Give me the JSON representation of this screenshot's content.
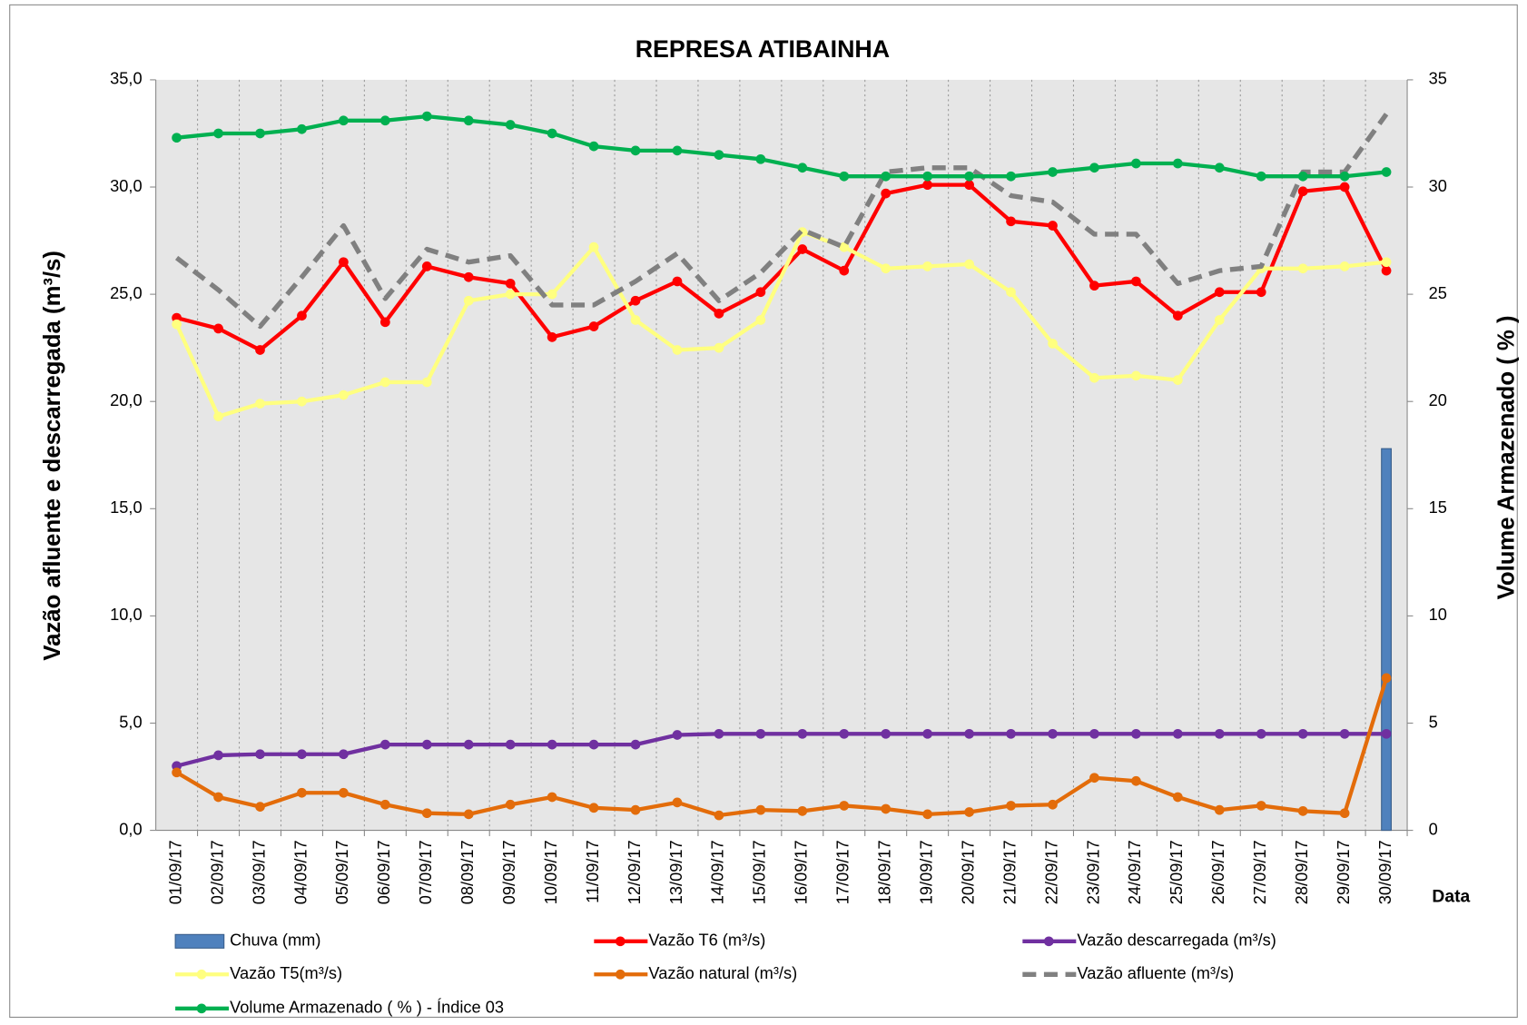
{
  "chart_data": {
    "type": "line",
    "title": "REPRESA ATIBAINHA",
    "y_label": "Vazão afluente e descarregada (m³/s)",
    "y2_label": "Volume Armazenado ( % )",
    "x_label": "Data",
    "categories": [
      "01/09/17",
      "02/09/17",
      "03/09/17",
      "04/09/17",
      "05/09/17",
      "06/09/17",
      "07/09/17",
      "08/09/17",
      "09/09/17",
      "10/09/17",
      "11/09/17",
      "12/09/17",
      "13/09/17",
      "14/09/17",
      "15/09/17",
      "16/09/17",
      "17/09/17",
      "18/09/17",
      "19/09/17",
      "20/09/17",
      "21/09/17",
      "22/09/17",
      "23/09/17",
      "24/09/17",
      "25/09/17",
      "26/09/17",
      "27/09/17",
      "28/09/17",
      "29/09/17",
      "30/09/17"
    ],
    "ylim": [
      0,
      35
    ],
    "yticks": [
      {
        "value": 0,
        "label": "0,0"
      },
      {
        "value": 5,
        "label": "5,0"
      },
      {
        "value": 10,
        "label": "10,0"
      },
      {
        "value": 15,
        "label": "15,0"
      },
      {
        "value": 20,
        "label": "20,0"
      },
      {
        "value": 25,
        "label": "25,0"
      },
      {
        "value": 30,
        "label": "30,0"
      },
      {
        "value": 35,
        "label": "35,0"
      }
    ],
    "y2lim": [
      0,
      35
    ],
    "y2ticks": [
      0,
      5,
      10,
      15,
      20,
      25,
      30,
      35
    ],
    "series": [
      {
        "name": "Chuva (mm)",
        "type": "bar",
        "color": "#4f81bd",
        "values": [
          0,
          0,
          0,
          0,
          0,
          0,
          0,
          0,
          0,
          0,
          0,
          0,
          0,
          0,
          0,
          0,
          0,
          0,
          0,
          0,
          0,
          0,
          0,
          0,
          0,
          0,
          0,
          0,
          0,
          17.8
        ]
      },
      {
        "name": "Vazão T6 (m³/s)",
        "type": "line",
        "color": "#ff0000",
        "marker": true,
        "values": [
          23.9,
          23.4,
          22.4,
          24.0,
          26.5,
          23.7,
          26.3,
          25.8,
          25.5,
          23.0,
          23.5,
          24.7,
          25.6,
          24.1,
          25.1,
          27.1,
          26.1,
          29.7,
          30.1,
          30.1,
          28.4,
          28.2,
          25.4,
          25.6,
          24.0,
          25.1,
          25.1,
          29.8,
          30.0,
          26.1
        ]
      },
      {
        "name": "Vazão descarregada (m³/s)",
        "type": "line",
        "color": "#7030a0",
        "marker": true,
        "values": [
          3.0,
          3.5,
          3.55,
          3.55,
          3.55,
          4.0,
          4.0,
          4.0,
          4.0,
          4.0,
          4.0,
          4.0,
          4.45,
          4.5,
          4.5,
          4.5,
          4.5,
          4.5,
          4.5,
          4.5,
          4.5,
          4.5,
          4.5,
          4.5,
          4.5,
          4.5,
          4.5,
          4.5,
          4.5,
          4.5
        ]
      },
      {
        "name": "Vazão T5(m³/s)",
        "type": "line",
        "color": "#ffff80",
        "marker": true,
        "values": [
          23.6,
          19.3,
          19.9,
          20.0,
          20.3,
          20.9,
          20.9,
          24.7,
          25.0,
          25.0,
          27.2,
          23.8,
          22.4,
          22.5,
          23.8,
          27.9,
          27.2,
          26.2,
          26.3,
          26.4,
          25.1,
          22.7,
          21.1,
          21.2,
          21.0,
          23.8,
          26.2,
          26.2,
          26.3,
          26.5
        ]
      },
      {
        "name": "Vazão natural (m³/s)",
        "type": "line",
        "color": "#e36c0a",
        "marker": true,
        "values": [
          2.7,
          1.55,
          1.1,
          1.75,
          1.75,
          1.2,
          0.8,
          0.75,
          1.2,
          1.55,
          1.05,
          0.95,
          1.3,
          0.7,
          0.95,
          0.9,
          1.15,
          1.0,
          0.75,
          0.85,
          1.15,
          1.2,
          2.45,
          2.3,
          1.55,
          0.95,
          1.15,
          0.9,
          0.8,
          7.1
        ]
      },
      {
        "name": "Vazão afluente (m³/s)",
        "type": "line",
        "color": "#808080",
        "dash": true,
        "marker": false,
        "values": [
          26.7,
          25.2,
          23.5,
          25.8,
          28.2,
          24.8,
          27.1,
          26.5,
          26.8,
          24.5,
          24.5,
          25.6,
          26.9,
          24.7,
          26.0,
          28.0,
          27.2,
          30.7,
          30.9,
          30.9,
          29.6,
          29.3,
          27.8,
          27.8,
          25.5,
          26.1,
          26.3,
          30.7,
          30.7,
          33.4
        ]
      },
      {
        "name": "Volume Armazenado ( % ) - Índice 03",
        "type": "line",
        "axis": "y2",
        "color": "#00b050",
        "marker": true,
        "values": [
          32.3,
          32.5,
          32.5,
          32.7,
          33.1,
          33.1,
          33.3,
          33.1,
          32.9,
          32.5,
          31.9,
          31.7,
          31.7,
          31.5,
          31.3,
          30.9,
          30.5,
          30.5,
          30.5,
          30.5,
          30.5,
          30.7,
          30.9,
          31.1,
          31.1,
          30.9,
          30.5,
          30.5,
          30.5,
          30.7
        ]
      }
    ]
  }
}
